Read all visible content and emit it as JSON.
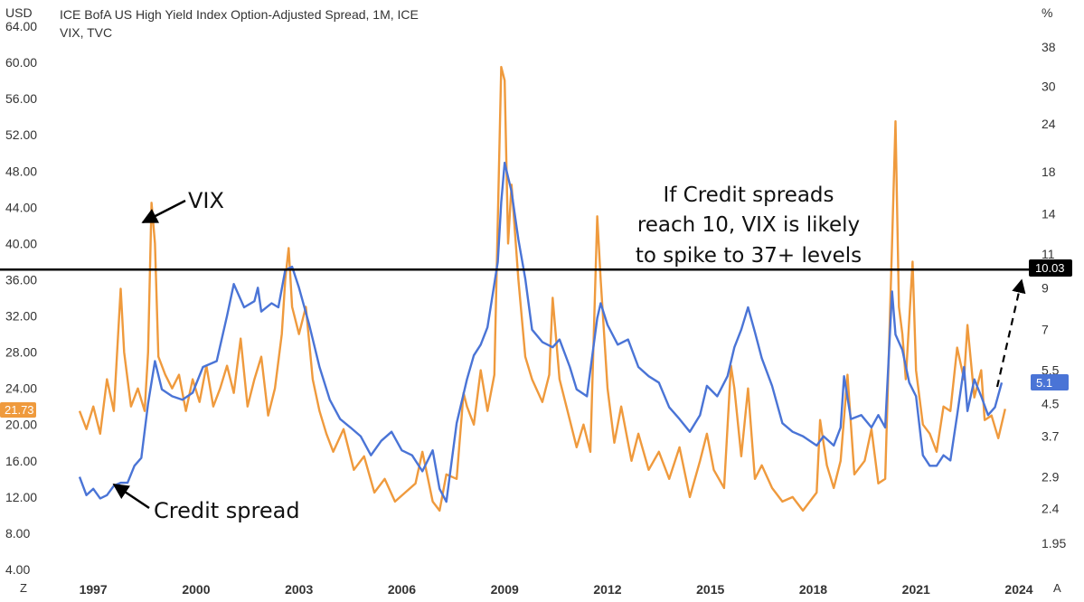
{
  "chart_data": {
    "type": "line",
    "title": "ICE BofA US High Yield Index Option-Adjusted Spread, 1M, ICE",
    "subtitle": "VIX, TVC",
    "left_axis": {
      "unit_label": "USD",
      "scale": "linear",
      "range": [
        4,
        64
      ],
      "ticks": [
        "64.00",
        "60.00",
        "56.00",
        "52.00",
        "48.00",
        "44.00",
        "40.00",
        "36.00",
        "32.00",
        "28.00",
        "24.00",
        "20.00",
        "16.00",
        "12.00",
        "8.00",
        "4.00"
      ]
    },
    "right_axis": {
      "unit_label": "%",
      "scale": "log",
      "ticks": [
        "38",
        "30",
        "24",
        "18",
        "14",
        "11",
        "9",
        "7",
        "5.5",
        "4.5",
        "3.7",
        "2.9",
        "2.4",
        "1.95"
      ]
    },
    "x_axis": {
      "range": [
        1996.6,
        2024.0
      ],
      "ticks": [
        "1997",
        "2000",
        "2003",
        "2006",
        "2009",
        "2012",
        "2015",
        "2018",
        "2021",
        "2024"
      ]
    },
    "series": [
      {
        "name": "VIX",
        "axis": "left",
        "color": "#ef9a3d",
        "last_value": "21.73",
        "points": [
          [
            1996.6,
            21.5
          ],
          [
            1996.8,
            19.5
          ],
          [
            1997.0,
            22.0
          ],
          [
            1997.2,
            19.0
          ],
          [
            1997.4,
            25.0
          ],
          [
            1997.6,
            21.5
          ],
          [
            1997.8,
            35.0
          ],
          [
            1997.9,
            28.0
          ],
          [
            1998.1,
            22.0
          ],
          [
            1998.3,
            24.0
          ],
          [
            1998.5,
            21.5
          ],
          [
            1998.6,
            28.0
          ],
          [
            1998.7,
            44.5
          ],
          [
            1998.8,
            40.0
          ],
          [
            1998.9,
            27.5
          ],
          [
            1999.1,
            25.5
          ],
          [
            1999.3,
            24.0
          ],
          [
            1999.5,
            25.5
          ],
          [
            1999.7,
            21.5
          ],
          [
            1999.9,
            25.0
          ],
          [
            2000.1,
            22.5
          ],
          [
            2000.3,
            26.5
          ],
          [
            2000.5,
            22.0
          ],
          [
            2000.7,
            24.0
          ],
          [
            2000.9,
            26.5
          ],
          [
            2001.1,
            23.5
          ],
          [
            2001.3,
            29.5
          ],
          [
            2001.5,
            22.0
          ],
          [
            2001.7,
            25.0
          ],
          [
            2001.9,
            27.5
          ],
          [
            2002.1,
            21.0
          ],
          [
            2002.3,
            24.0
          ],
          [
            2002.5,
            30.0
          ],
          [
            2002.6,
            36.0
          ],
          [
            2002.7,
            39.5
          ],
          [
            2002.8,
            33.0
          ],
          [
            2003.0,
            30.0
          ],
          [
            2003.2,
            33.0
          ],
          [
            2003.4,
            25.0
          ],
          [
            2003.6,
            21.5
          ],
          [
            2003.8,
            19.0
          ],
          [
            2004.0,
            17.0
          ],
          [
            2004.3,
            19.5
          ],
          [
            2004.6,
            15.0
          ],
          [
            2004.9,
            16.5
          ],
          [
            2005.2,
            12.5
          ],
          [
            2005.5,
            14.0
          ],
          [
            2005.8,
            11.5
          ],
          [
            2006.1,
            12.5
          ],
          [
            2006.4,
            13.5
          ],
          [
            2006.6,
            17.0
          ],
          [
            2006.9,
            11.5
          ],
          [
            2007.1,
            10.5
          ],
          [
            2007.3,
            14.5
          ],
          [
            2007.6,
            14.0
          ],
          [
            2007.8,
            23.5
          ],
          [
            2007.9,
            22.0
          ],
          [
            2008.1,
            20.0
          ],
          [
            2008.3,
            26.0
          ],
          [
            2008.5,
            21.5
          ],
          [
            2008.7,
            25.5
          ],
          [
            2008.9,
            59.5
          ],
          [
            2009.0,
            58.0
          ],
          [
            2009.1,
            40.0
          ],
          [
            2009.2,
            46.5
          ],
          [
            2009.4,
            36.0
          ],
          [
            2009.6,
            27.5
          ],
          [
            2009.8,
            25.0
          ],
          [
            2010.1,
            22.5
          ],
          [
            2010.3,
            25.5
          ],
          [
            2010.4,
            34.0
          ],
          [
            2010.6,
            25.0
          ],
          [
            2010.8,
            22.0
          ],
          [
            2011.1,
            17.5
          ],
          [
            2011.3,
            20.0
          ],
          [
            2011.5,
            17.0
          ],
          [
            2011.6,
            30.0
          ],
          [
            2011.7,
            43.0
          ],
          [
            2011.8,
            36.0
          ],
          [
            2012.0,
            24.0
          ],
          [
            2012.2,
            18.0
          ],
          [
            2012.4,
            22.0
          ],
          [
            2012.7,
            16.0
          ],
          [
            2012.9,
            19.0
          ],
          [
            2013.2,
            15.0
          ],
          [
            2013.5,
            17.0
          ],
          [
            2013.8,
            14.0
          ],
          [
            2014.1,
            17.5
          ],
          [
            2014.4,
            12.0
          ],
          [
            2014.7,
            16.0
          ],
          [
            2014.9,
            19.0
          ],
          [
            2015.1,
            15.0
          ],
          [
            2015.4,
            13.0
          ],
          [
            2015.6,
            26.5
          ],
          [
            2015.7,
            24.0
          ],
          [
            2015.9,
            16.5
          ],
          [
            2016.1,
            24.0
          ],
          [
            2016.3,
            14.0
          ],
          [
            2016.5,
            15.5
          ],
          [
            2016.8,
            13.0
          ],
          [
            2017.1,
            11.5
          ],
          [
            2017.4,
            12.0
          ],
          [
            2017.7,
            10.5
          ],
          [
            2017.9,
            11.5
          ],
          [
            2018.1,
            12.5
          ],
          [
            2018.2,
            20.5
          ],
          [
            2018.4,
            15.5
          ],
          [
            2018.6,
            13.0
          ],
          [
            2018.8,
            16.0
          ],
          [
            2019.0,
            25.5
          ],
          [
            2019.2,
            14.5
          ],
          [
            2019.5,
            16.0
          ],
          [
            2019.7,
            19.5
          ],
          [
            2019.9,
            13.5
          ],
          [
            2020.1,
            14.0
          ],
          [
            2020.3,
            40.0
          ],
          [
            2020.4,
            53.5
          ],
          [
            2020.5,
            33.0
          ],
          [
            2020.6,
            30.0
          ],
          [
            2020.7,
            25.0
          ],
          [
            2020.9,
            38.0
          ],
          [
            2021.0,
            26.0
          ],
          [
            2021.2,
            20.0
          ],
          [
            2021.4,
            19.0
          ],
          [
            2021.6,
            17.0
          ],
          [
            2021.8,
            22.0
          ],
          [
            2022.0,
            21.5
          ],
          [
            2022.2,
            28.5
          ],
          [
            2022.4,
            25.0
          ],
          [
            2022.5,
            31.0
          ],
          [
            2022.7,
            23.0
          ],
          [
            2022.9,
            26.0
          ],
          [
            2023.0,
            20.5
          ],
          [
            2023.2,
            21.0
          ],
          [
            2023.4,
            18.5
          ],
          [
            2023.6,
            21.73
          ]
        ]
      },
      {
        "name": "Credit spread",
        "axis": "right",
        "color": "#4a74d6",
        "last_value": "5.1",
        "points": [
          [
            1996.6,
            2.9
          ],
          [
            1996.8,
            2.6
          ],
          [
            1997.0,
            2.7
          ],
          [
            1997.2,
            2.55
          ],
          [
            1997.4,
            2.6
          ],
          [
            1997.6,
            2.75
          ],
          [
            1997.8,
            2.8
          ],
          [
            1998.0,
            2.8
          ],
          [
            1998.2,
            3.1
          ],
          [
            1998.4,
            3.25
          ],
          [
            1998.6,
            4.5
          ],
          [
            1998.8,
            5.8
          ],
          [
            1999.0,
            4.9
          ],
          [
            1999.3,
            4.7
          ],
          [
            1999.6,
            4.6
          ],
          [
            1999.9,
            4.8
          ],
          [
            2000.2,
            5.6
          ],
          [
            2000.6,
            5.8
          ],
          [
            2000.9,
            7.6
          ],
          [
            2001.1,
            9.2
          ],
          [
            2001.4,
            8.0
          ],
          [
            2001.7,
            8.3
          ],
          [
            2001.8,
            9.0
          ],
          [
            2001.9,
            7.8
          ],
          [
            2002.2,
            8.2
          ],
          [
            2002.4,
            8.0
          ],
          [
            2002.6,
            10.0
          ],
          [
            2002.8,
            10.2
          ],
          [
            2003.0,
            9.0
          ],
          [
            2003.3,
            7.2
          ],
          [
            2003.6,
            5.6
          ],
          [
            2003.9,
            4.6
          ],
          [
            2004.2,
            4.1
          ],
          [
            2004.5,
            3.9
          ],
          [
            2004.8,
            3.7
          ],
          [
            2005.1,
            3.3
          ],
          [
            2005.4,
            3.6
          ],
          [
            2005.7,
            3.8
          ],
          [
            2006.0,
            3.4
          ],
          [
            2006.3,
            3.3
          ],
          [
            2006.6,
            3.0
          ],
          [
            2006.9,
            3.4
          ],
          [
            2007.1,
            2.7
          ],
          [
            2007.3,
            2.5
          ],
          [
            2007.6,
            4.0
          ],
          [
            2007.9,
            5.2
          ],
          [
            2008.1,
            6.0
          ],
          [
            2008.3,
            6.4
          ],
          [
            2008.5,
            7.1
          ],
          [
            2008.8,
            10.5
          ],
          [
            2008.9,
            15.0
          ],
          [
            2009.0,
            19.0
          ],
          [
            2009.2,
            16.0
          ],
          [
            2009.4,
            12.0
          ],
          [
            2009.6,
            9.5
          ],
          [
            2009.8,
            7.0
          ],
          [
            2010.1,
            6.5
          ],
          [
            2010.4,
            6.3
          ],
          [
            2010.6,
            6.6
          ],
          [
            2010.9,
            5.6
          ],
          [
            2011.1,
            4.9
          ],
          [
            2011.4,
            4.7
          ],
          [
            2011.7,
            7.5
          ],
          [
            2011.8,
            8.2
          ],
          [
            2012.0,
            7.2
          ],
          [
            2012.3,
            6.4
          ],
          [
            2012.6,
            6.6
          ],
          [
            2012.9,
            5.6
          ],
          [
            2013.2,
            5.3
          ],
          [
            2013.5,
            5.1
          ],
          [
            2013.8,
            4.4
          ],
          [
            2014.1,
            4.1
          ],
          [
            2014.4,
            3.8
          ],
          [
            2014.7,
            4.2
          ],
          [
            2014.9,
            5.0
          ],
          [
            2015.2,
            4.7
          ],
          [
            2015.5,
            5.3
          ],
          [
            2015.7,
            6.3
          ],
          [
            2015.9,
            7.0
          ],
          [
            2016.1,
            8.0
          ],
          [
            2016.3,
            6.9
          ],
          [
            2016.5,
            5.9
          ],
          [
            2016.8,
            5.0
          ],
          [
            2017.1,
            4.0
          ],
          [
            2017.4,
            3.8
          ],
          [
            2017.7,
            3.7
          ],
          [
            2017.9,
            3.6
          ],
          [
            2018.1,
            3.5
          ],
          [
            2018.3,
            3.7
          ],
          [
            2018.6,
            3.5
          ],
          [
            2018.8,
            3.9
          ],
          [
            2018.9,
            5.3
          ],
          [
            2019.1,
            4.1
          ],
          [
            2019.4,
            4.2
          ],
          [
            2019.7,
            3.9
          ],
          [
            2019.9,
            4.2
          ],
          [
            2020.1,
            3.9
          ],
          [
            2020.3,
            8.8
          ],
          [
            2020.4,
            6.8
          ],
          [
            2020.6,
            6.2
          ],
          [
            2020.8,
            5.1
          ],
          [
            2021.0,
            4.7
          ],
          [
            2021.2,
            3.3
          ],
          [
            2021.4,
            3.1
          ],
          [
            2021.6,
            3.1
          ],
          [
            2021.8,
            3.3
          ],
          [
            2022.0,
            3.2
          ],
          [
            2022.2,
            4.2
          ],
          [
            2022.4,
            5.6
          ],
          [
            2022.5,
            4.3
          ],
          [
            2022.7,
            5.2
          ],
          [
            2022.9,
            4.7
          ],
          [
            2023.1,
            4.2
          ],
          [
            2023.3,
            4.4
          ],
          [
            2023.5,
            5.1
          ]
        ]
      }
    ],
    "reference_line": {
      "value": "10.03",
      "axis": "right"
    },
    "annotations": {
      "vix_label": "VIX",
      "credit_label": "Credit spread",
      "note_lines": [
        "If Credit spreads",
        "reach 10, VIX is likely",
        "to spike to 37+ levels"
      ]
    },
    "corner_labels": {
      "bottom_left": "Z",
      "bottom_right": "A"
    },
    "colors": {
      "vix": "#ef9a3d",
      "credit": "#4a74d6",
      "reference": "#000000",
      "credit_tag_bg": "#4a74d6",
      "vix_tag_bg": "#ef9a3d",
      "ref_tag_bg": "#000000"
    }
  }
}
